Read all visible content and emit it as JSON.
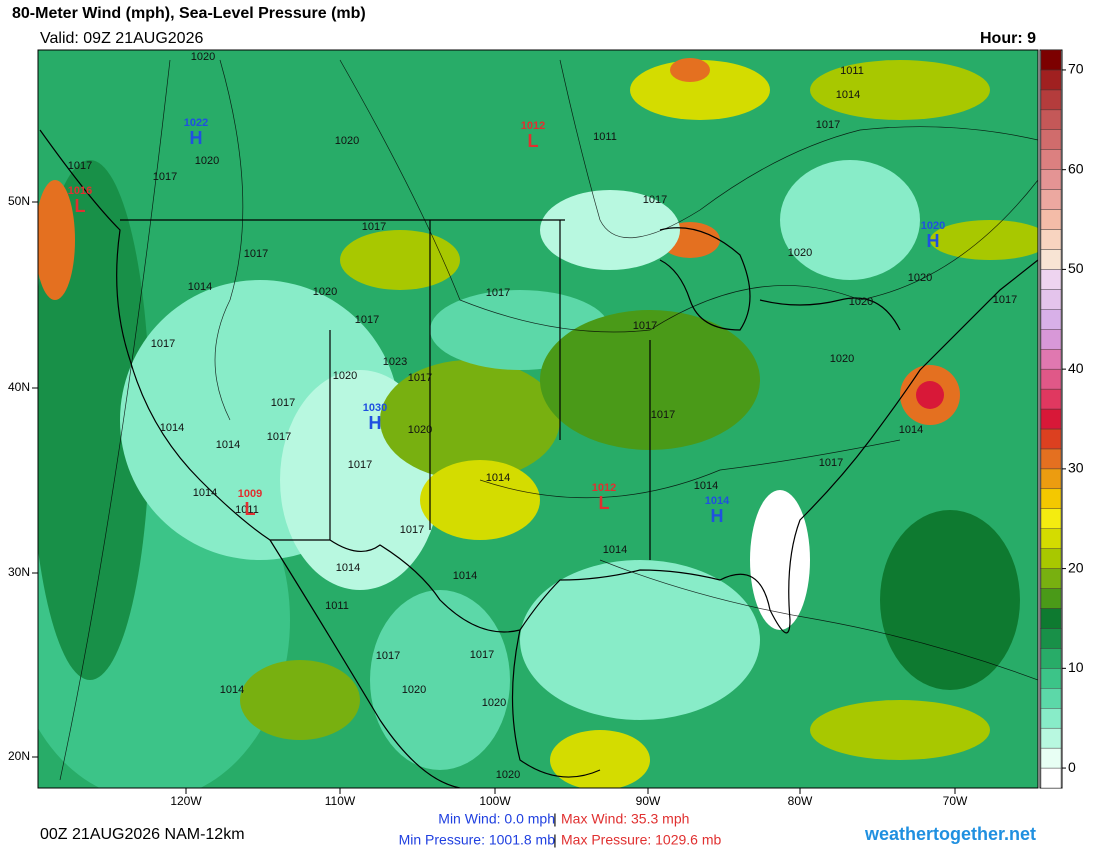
{
  "header": {
    "title": "80-Meter Wind (mph), Sea-Level Pressure (mb)",
    "valid": "Valid: 09Z 21AUG2026",
    "hour": "Hour: 9"
  },
  "colorbar": {
    "levels": [
      -2,
      0,
      2,
      4,
      6,
      8,
      10,
      12,
      14,
      16,
      18,
      20,
      22,
      24,
      26,
      28,
      30,
      32,
      34,
      36,
      38,
      40,
      42,
      44,
      46,
      48,
      50,
      52,
      54,
      56,
      58,
      60,
      62,
      64,
      66,
      68,
      70,
      72
    ],
    "colors": [
      "#ffffff",
      "#e8fff4",
      "#b8f8e0",
      "#88ecc8",
      "#5cd8a8",
      "#3cc488",
      "#28ac68",
      "#189048",
      "#0e7a30",
      "#4a9a18",
      "#78b010",
      "#a8c800",
      "#d4dc00",
      "#f4ec10",
      "#f4c800",
      "#ec9c10",
      "#e47020",
      "#dc4020",
      "#d81838",
      "#e03860",
      "#e05888",
      "#e078b0",
      "#d898d8",
      "#d8b0e8",
      "#e4c4ec",
      "#eed4f0",
      "#f8e4d4",
      "#f8d4c0",
      "#f4bca8",
      "#eca8a0",
      "#e49494",
      "#dc8080",
      "#d06c6c",
      "#c45858",
      "#b43c3c",
      "#a02020",
      "#7c0000"
    ],
    "ticks": [
      0,
      10,
      20,
      30,
      40,
      50,
      60,
      70
    ]
  },
  "axes": {
    "lon_labels": [
      "120W",
      "110W",
      "100W",
      "90W",
      "80W",
      "70W"
    ],
    "lat_labels": [
      "20N",
      "30N",
      "40N",
      "50N"
    ]
  },
  "centers": [
    {
      "type": "H",
      "value": 1022
    },
    {
      "type": "L",
      "value": 1012
    },
    {
      "type": "L",
      "value": 1016
    },
    {
      "type": "H",
      "value": 1020
    },
    {
      "type": "H",
      "value": 1030
    },
    {
      "type": "L",
      "value": 1009
    },
    {
      "type": "L",
      "value": 1012
    },
    {
      "type": "H",
      "value": 1014
    }
  ],
  "isobar_labels": [
    1020,
    1020,
    1017,
    1017,
    1020,
    1011,
    1011,
    1014,
    1017,
    1017,
    1017,
    1017,
    1014,
    1020,
    1017,
    1017,
    1017,
    1020,
    1020,
    1020,
    1017,
    1017,
    1023,
    1020,
    1017,
    1020,
    1017,
    1017,
    1014,
    1014,
    1017,
    1020,
    1014,
    1017,
    1017,
    1014,
    1014,
    1014,
    1011,
    1017,
    1014,
    1014,
    1014,
    1011,
    1017,
    1017,
    1014,
    1020,
    1020,
    1020
  ],
  "footer": {
    "run": "00Z 21AUG2026 NAM-12km",
    "min_wind": "Min Wind:  0.0 mph",
    "max_wind": "Max Wind: 35.3 mph",
    "min_pressure": "Min Pressure: 1001.8 mb",
    "max_pressure": "Max Pressure: 1029.6 mb",
    "separator": "|",
    "site": "weathertogether.net"
  }
}
